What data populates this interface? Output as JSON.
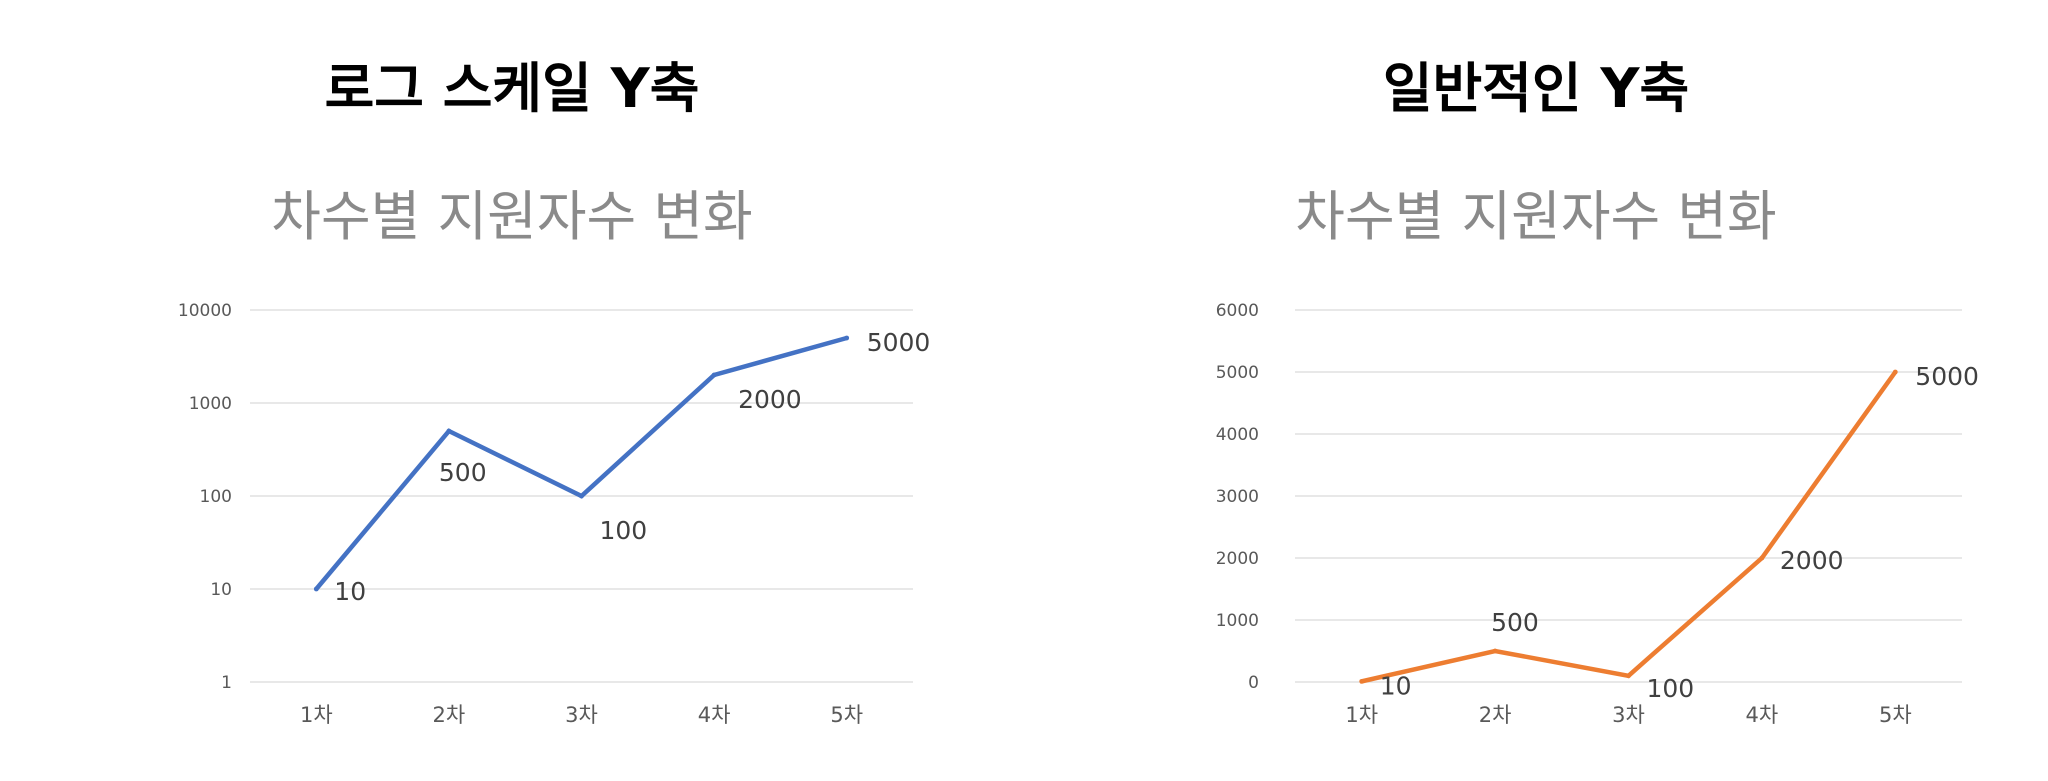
{
  "panels": [
    {
      "heading": "로그 스케일 Y축"
    },
    {
      "heading": "일반적인 Y축"
    }
  ],
  "chart_data": [
    {
      "type": "line",
      "title": "차수별 지원자수 변화",
      "categories": [
        "1차",
        "2차",
        "3차",
        "4차",
        "5차"
      ],
      "values": [
        10,
        500,
        100,
        2000,
        5000
      ],
      "y_scale": "log",
      "ylim": [
        1,
        10000
      ],
      "y_ticks": [
        "1",
        "10",
        "100",
        "1000",
        "10000"
      ],
      "data_labels": [
        "10",
        "500",
        "100",
        "2000",
        "5000"
      ],
      "color": "#4472c4",
      "grid": true,
      "legend": "none"
    },
    {
      "type": "line",
      "title": "차수별 지원자수 변화",
      "categories": [
        "1차",
        "2차",
        "3차",
        "4차",
        "5차"
      ],
      "values": [
        10,
        500,
        100,
        2000,
        5000
      ],
      "y_scale": "linear",
      "ylim": [
        0,
        6000
      ],
      "y_ticks": [
        "0",
        "1000",
        "2000",
        "3000",
        "4000",
        "5000",
        "6000"
      ],
      "data_labels": [
        "10",
        "500",
        "100",
        "2000",
        "5000"
      ],
      "color": "#ed7d31",
      "grid": true,
      "legend": "none"
    }
  ]
}
